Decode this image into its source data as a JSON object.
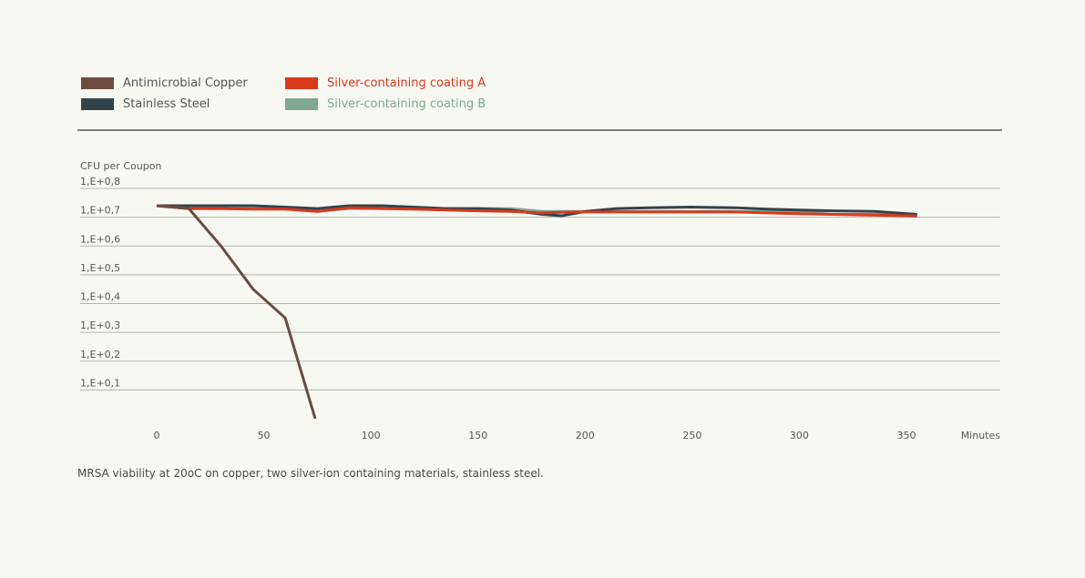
{
  "legend": {
    "items": [
      {
        "label": "Antimicrobial Copper",
        "color": "#6b4c3f",
        "text_color": "#555555"
      },
      {
        "label": "Stainless Steel",
        "color": "#34424a",
        "text_color": "#555555"
      },
      {
        "label": "Silver-containing coating A",
        "color": "#d8391b",
        "text_color": "#d8391b"
      },
      {
        "label": "Silver-containing coating B",
        "color": "#7fa791",
        "text_color": "#7fa791"
      }
    ]
  },
  "caption": "MRSA viability at 20oC on copper, two silver-ion containing materials, stainless steel.",
  "chart_data": {
    "type": "line",
    "ylabel": "CFU per Coupon",
    "xlabel": "Minutes",
    "xlim": [
      0,
      360
    ],
    "ylim": [
      1.0,
      1.8
    ],
    "xticks": [
      0,
      50,
      100,
      150,
      200,
      250,
      300,
      350
    ],
    "yticks": [
      {
        "value": 1.1,
        "label": "1,E+0,1"
      },
      {
        "value": 1.2,
        "label": "1,E+0,2"
      },
      {
        "value": 1.3,
        "label": "1,E+0,3"
      },
      {
        "value": 1.4,
        "label": "1,E+0,4"
      },
      {
        "value": 1.5,
        "label": "1,E+0,5"
      },
      {
        "value": 1.6,
        "label": "1,E+0,6"
      },
      {
        "value": 1.7,
        "label": "1,E+0,7"
      },
      {
        "value": 1.8,
        "label": "1,E+0,8"
      }
    ],
    "series": [
      {
        "name": "Silver-containing coating B",
        "color": "#7fa791",
        "points": [
          [
            0,
            1.74
          ],
          [
            15,
            1.73
          ],
          [
            30,
            1.73
          ],
          [
            45,
            1.73
          ],
          [
            60,
            1.73
          ],
          [
            75,
            1.72
          ],
          [
            90,
            1.73
          ],
          [
            105,
            1.73
          ],
          [
            120,
            1.73
          ],
          [
            135,
            1.73
          ],
          [
            150,
            1.73
          ],
          [
            165,
            1.73
          ],
          [
            180,
            1.72
          ],
          [
            195,
            1.72
          ],
          [
            210,
            1.72
          ],
          [
            225,
            1.72
          ],
          [
            240,
            1.72
          ],
          [
            255,
            1.72
          ],
          [
            270,
            1.72
          ],
          [
            285,
            1.72
          ],
          [
            300,
            1.72
          ],
          [
            315,
            1.71
          ],
          [
            330,
            1.71
          ],
          [
            345,
            1.71
          ],
          [
            355,
            1.71
          ]
        ]
      },
      {
        "name": "Stainless Steel",
        "color": "#34424a",
        "points": [
          [
            0,
            1.74
          ],
          [
            15,
            1.74
          ],
          [
            30,
            1.74
          ],
          [
            45,
            1.74
          ],
          [
            60,
            1.735
          ],
          [
            75,
            1.73
          ],
          [
            90,
            1.74
          ],
          [
            105,
            1.74
          ],
          [
            120,
            1.735
          ],
          [
            135,
            1.73
          ],
          [
            150,
            1.73
          ],
          [
            165,
            1.725
          ],
          [
            180,
            1.71
          ],
          [
            189,
            1.705
          ],
          [
            200,
            1.72
          ],
          [
            215,
            1.73
          ],
          [
            230,
            1.733
          ],
          [
            250,
            1.735
          ],
          [
            270,
            1.733
          ],
          [
            285,
            1.728
          ],
          [
            300,
            1.725
          ],
          [
            315,
            1.722
          ],
          [
            335,
            1.72
          ],
          [
            355,
            1.71
          ]
        ]
      },
      {
        "name": "Silver-containing coating A",
        "color": "#d8391b",
        "points": [
          [
            0,
            1.74
          ],
          [
            15,
            1.73
          ],
          [
            30,
            1.73
          ],
          [
            45,
            1.728
          ],
          [
            60,
            1.728
          ],
          [
            75,
            1.72
          ],
          [
            90,
            1.733
          ],
          [
            105,
            1.73
          ],
          [
            120,
            1.728
          ],
          [
            135,
            1.725
          ],
          [
            150,
            1.722
          ],
          [
            165,
            1.72
          ],
          [
            180,
            1.715
          ],
          [
            195,
            1.718
          ],
          [
            210,
            1.718
          ],
          [
            225,
            1.718
          ],
          [
            240,
            1.718
          ],
          [
            255,
            1.718
          ],
          [
            270,
            1.718
          ],
          [
            285,
            1.715
          ],
          [
            300,
            1.712
          ],
          [
            315,
            1.71
          ],
          [
            330,
            1.708
          ],
          [
            345,
            1.706
          ],
          [
            355,
            1.704
          ]
        ]
      },
      {
        "name": "Antimicrobial Copper",
        "color": "#6b4c3f",
        "points": [
          [
            0,
            1.74
          ],
          [
            15,
            1.73
          ],
          [
            30,
            1.6
          ],
          [
            45,
            1.45
          ],
          [
            60,
            1.35
          ],
          [
            74,
            1.0
          ]
        ]
      }
    ]
  }
}
